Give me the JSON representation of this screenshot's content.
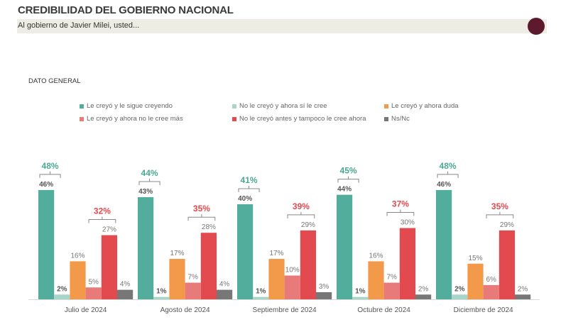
{
  "header": {
    "title": "CREDIBILIDAD DEL GOBIERNO NACIONAL",
    "subtitle": "Al gobierno de Javier Milei, usted...",
    "logo_color": "#5e1a2d"
  },
  "chart_data": {
    "type": "bar",
    "title": "DATO GENERAL",
    "legend_position": "top",
    "categories": [
      "Julio de 2024",
      "Agosto de 2024",
      "Septiembre de 2024",
      "Octubre de 2024",
      "Diciembre de 2024"
    ],
    "series": [
      {
        "name": "Le creyó y le sigue creyendo",
        "color": "#52ad9c",
        "values": [
          46,
          43,
          40,
          44,
          46
        ]
      },
      {
        "name": "No le creyó y ahora sí le cree",
        "color": "#a8d5c8",
        "values": [
          2,
          1,
          1,
          1,
          2
        ]
      },
      {
        "name": "Le creyó y ahora duda",
        "color": "#f29a4a",
        "values": [
          16,
          17,
          17,
          16,
          15
        ]
      },
      {
        "name": "Le creyó y ahora no le cree más",
        "color": "#e87a7a",
        "values": [
          5,
          7,
          10,
          7,
          6
        ]
      },
      {
        "name": "No le creyó antes y tampoco le cree ahora",
        "color": "#e34a4f",
        "values": [
          27,
          28,
          29,
          30,
          29
        ]
      },
      {
        "name": "Ns/Nc",
        "color": "#777777",
        "values": [
          4,
          4,
          3,
          2,
          2
        ]
      }
    ],
    "annotations": {
      "believe_totals": {
        "color": "#4aa892",
        "values": [
          48,
          44,
          41,
          45,
          48
        ]
      },
      "disbelieve_totals": {
        "color": "#e34a4f",
        "values": [
          32,
          35,
          39,
          37,
          35
        ]
      }
    },
    "value_suffix": "%",
    "grid": false
  }
}
